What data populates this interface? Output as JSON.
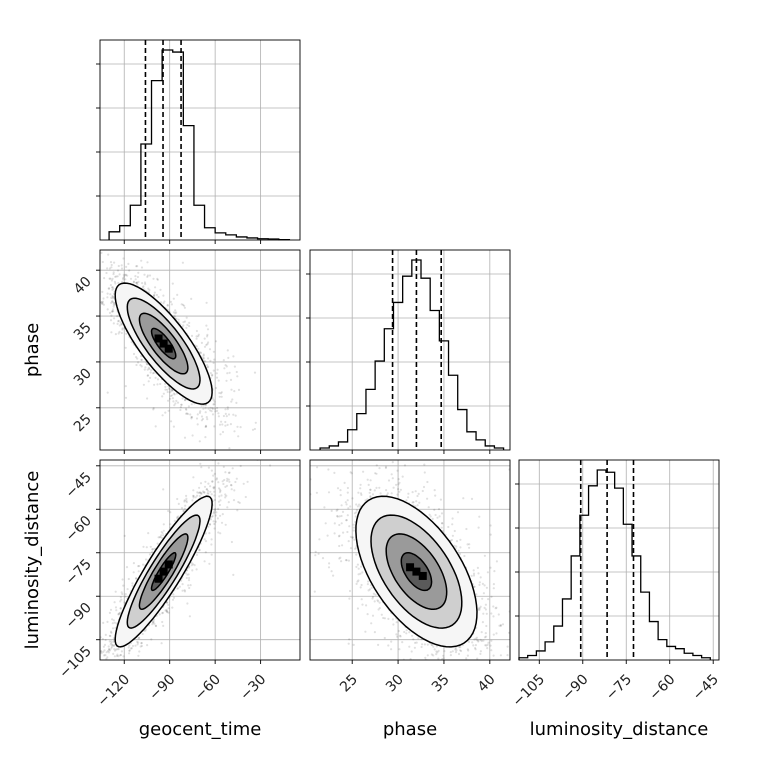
{
  "chart_data": {
    "type": "corner",
    "parameters": [
      "geocent_time",
      "phase",
      "luminosity_distance"
    ],
    "axis_labels": {
      "geocent_time": "geocent_time",
      "phase": "phase",
      "luminosity_distance": "luminosity_distance"
    },
    "ranges": {
      "geocent_time": [
        -136,
        -4
      ],
      "phase": [
        20.4,
        42.2
      ],
      "luminosity_distance": [
        -112,
        -43
      ]
    },
    "ticks": {
      "geocent_time": [
        -120,
        -90,
        -60,
        -30
      ],
      "phase": [
        25,
        30,
        35,
        40
      ],
      "luminosity_distance": [
        -105,
        -90,
        -75,
        -60,
        -45
      ]
    },
    "tick_labels": {
      "geocent_time": [
        "−120",
        "−90",
        "−60",
        "−30"
      ],
      "phase": [
        "25",
        "30",
        "35",
        "40"
      ],
      "luminosity_distance": [
        "−105",
        "−90",
        "−75",
        "−60",
        "−45"
      ]
    },
    "histograms": {
      "geocent_time": {
        "bin_edges": [
          -130,
          -123,
          -116,
          -109,
          -102,
          -95,
          -88,
          -81,
          -74,
          -67,
          -60,
          -53,
          -46,
          -39,
          -32,
          -25,
          -18,
          -11
        ],
        "counts": [
          0.04,
          0.07,
          0.17,
          0.47,
          0.78,
          0.93,
          0.92,
          0.56,
          0.17,
          0.06,
          0.035,
          0.025,
          0.015,
          0.01,
          0.006,
          0.005,
          0.002
        ],
        "quantiles": [
          -106,
          -94.4,
          -82.5
        ]
      },
      "phase": {
        "bin_edges": [
          21.5,
          22.5,
          23.5,
          24.5,
          25.5,
          26.5,
          27.5,
          28.5,
          29.5,
          30.5,
          31.5,
          32.5,
          33.5,
          34.5,
          35.5,
          36.5,
          37.5,
          38.5,
          39.5,
          40.5,
          41.5
        ],
        "counts": [
          0.01,
          0.02,
          0.04,
          0.1,
          0.18,
          0.3,
          0.44,
          0.6,
          0.73,
          0.86,
          0.94,
          0.85,
          0.69,
          0.54,
          0.37,
          0.2,
          0.09,
          0.05,
          0.02,
          0.01
        ],
        "quantiles": [
          29.4,
          32.0,
          34.7
        ]
      },
      "luminosity_distance": {
        "bin_edges": [
          -112,
          -109,
          -106,
          -103,
          -100,
          -97,
          -94,
          -91,
          -88,
          -85,
          -82,
          -79,
          -76,
          -73,
          -70,
          -67,
          -64,
          -61,
          -58,
          -55,
          -52,
          -49,
          -46
        ],
        "counts": [
          0.01,
          0.02,
          0.04,
          0.08,
          0.15,
          0.27,
          0.46,
          0.64,
          0.77,
          0.84,
          0.83,
          0.76,
          0.6,
          0.46,
          0.3,
          0.17,
          0.09,
          0.06,
          0.05,
          0.03,
          0.02,
          0.01
        ],
        "quantiles": [
          -90.7,
          -81.6,
          -72.5
        ]
      }
    },
    "joint": [
      {
        "x": "geocent_time",
        "y": "phase",
        "mean": [
          -94,
          32
        ],
        "sigma": [
          16,
          3.3
        ],
        "correlation": -0.8
      },
      {
        "x": "geocent_time",
        "y": "luminosity_distance",
        "mean": [
          -94,
          -81.5
        ],
        "sigma": [
          16,
          13
        ],
        "correlation": 0.9
      },
      {
        "x": "phase",
        "y": "luminosity_distance",
        "mean": [
          32,
          -81.5
        ],
        "sigma": [
          3.3,
          13
        ],
        "correlation": -0.55
      }
    ],
    "contour_levels_sigma": [
      0.5,
      1.0,
      1.5,
      2.0
    ],
    "grid": true,
    "colors": {
      "line": "#000000",
      "grid": "#b0b0b0",
      "points": "#000000"
    }
  }
}
